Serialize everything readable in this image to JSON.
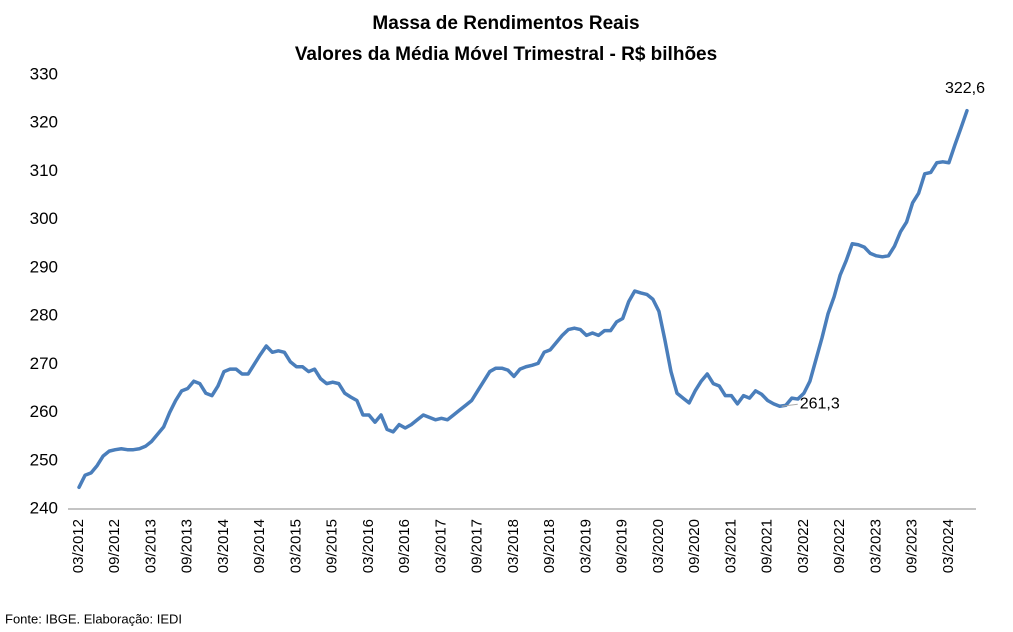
{
  "chart_data": {
    "type": "line",
    "title": "Massa de Rendimentos Reais",
    "subtitle": "Valores da Média Móvel Trimestral - R$ bilhões",
    "source": "Fonte: IBGE. Elaboração: IEDI",
    "color": "#4a7ebb",
    "grid": false,
    "ylim": [
      240,
      330
    ],
    "yticks": [
      240,
      250,
      260,
      270,
      280,
      290,
      300,
      310,
      320,
      330
    ],
    "categories": [
      "03/2012",
      null,
      null,
      null,
      null,
      null,
      "09/2012",
      null,
      null,
      null,
      null,
      null,
      "03/2013",
      null,
      null,
      null,
      null,
      null,
      "09/2013",
      null,
      null,
      null,
      null,
      null,
      "03/2014",
      null,
      null,
      null,
      null,
      null,
      "09/2014",
      null,
      null,
      null,
      null,
      null,
      "03/2015",
      null,
      null,
      null,
      null,
      null,
      "09/2015",
      null,
      null,
      null,
      null,
      null,
      "03/2016",
      null,
      null,
      null,
      null,
      null,
      "09/2016",
      null,
      null,
      null,
      null,
      null,
      "03/2017",
      null,
      null,
      null,
      null,
      null,
      "09/2017",
      null,
      null,
      null,
      null,
      null,
      "03/2018",
      null,
      null,
      null,
      null,
      null,
      "09/2018",
      null,
      null,
      null,
      null,
      null,
      "03/2019",
      null,
      null,
      null,
      null,
      null,
      "09/2019",
      null,
      null,
      null,
      null,
      null,
      "03/2020",
      null,
      null,
      null,
      null,
      null,
      "09/2020",
      null,
      null,
      null,
      null,
      null,
      "03/2021",
      null,
      null,
      null,
      null,
      null,
      "09/2021",
      null,
      null,
      null,
      null,
      null,
      "03/2022",
      null,
      null,
      null,
      null,
      null,
      "09/2022",
      null,
      null,
      null,
      null,
      null,
      "03/2023",
      null,
      null,
      null,
      null,
      null,
      "09/2023",
      null,
      null,
      null,
      null,
      null,
      "03/2024",
      null,
      null,
      null
    ],
    "values": [
      244.5,
      247,
      247.5,
      249,
      251,
      252,
      252.3,
      252.5,
      252.3,
      252.3,
      252.5,
      253,
      254,
      255.5,
      257,
      260,
      262.5,
      264.5,
      265,
      266.5,
      266,
      264,
      263.5,
      265.5,
      268.5,
      269,
      269,
      268,
      268,
      270,
      272,
      273.8,
      272.5,
      272.8,
      272.5,
      270.5,
      269.5,
      269.5,
      268.5,
      269,
      267,
      266,
      266.3,
      266,
      264,
      263.2,
      262.5,
      259.5,
      259.5,
      258,
      259.5,
      256.5,
      256,
      257.5,
      256.8,
      257.5,
      258.5,
      259.5,
      259,
      258.5,
      258.8,
      258.5,
      259.5,
      260.5,
      261.5,
      262.5,
      264.5,
      266.5,
      268.5,
      269.2,
      269.2,
      268.8,
      267.5,
      269,
      269.5,
      269.8,
      270.2,
      272.5,
      273,
      274.5,
      276,
      277.2,
      277.5,
      277.2,
      276,
      276.5,
      276,
      277,
      277,
      278.8,
      279.5,
      283,
      285.2,
      284.8,
      284.5,
      283.5,
      281,
      275,
      268.5,
      264,
      263,
      262,
      264.5,
      266.5,
      268,
      266,
      265.5,
      263.5,
      263.5,
      261.8,
      263.5,
      263,
      264.5,
      263.8,
      262.5,
      261.8,
      261.3,
      261.5,
      263,
      262.8,
      264,
      266.5,
      271,
      275.5,
      280.5,
      284,
      288.5,
      291.5,
      295,
      294.8,
      294.3,
      293,
      292.5,
      292.3,
      292.5,
      294.5,
      297.5,
      299.5,
      303.5,
      305.5,
      309.5,
      309.8,
      311.8,
      312,
      311.8,
      315.5,
      319,
      322.6
    ],
    "value_labels": [
      null,
      null,
      null,
      null,
      null,
      null,
      null,
      null,
      null,
      null,
      null,
      null,
      null,
      null,
      null,
      null,
      null,
      null,
      null,
      null,
      null,
      null,
      null,
      null,
      null,
      null,
      null,
      null,
      null,
      null,
      null,
      null,
      null,
      null,
      null,
      null,
      null,
      null,
      null,
      null,
      null,
      null,
      null,
      null,
      null,
      null,
      null,
      null,
      null,
      null,
      null,
      null,
      null,
      null,
      null,
      null,
      null,
      null,
      null,
      null,
      null,
      null,
      null,
      null,
      null,
      null,
      null,
      null,
      null,
      null,
      null,
      null,
      null,
      null,
      null,
      null,
      null,
      null,
      null,
      null,
      null,
      null,
      null,
      null,
      null,
      null,
      null,
      null,
      null,
      null,
      null,
      null,
      null,
      null,
      null,
      null,
      null,
      null,
      null,
      null,
      null,
      null,
      null,
      null,
      null,
      null,
      null,
      null,
      null,
      null,
      null,
      null,
      null,
      null,
      null,
      null,
      "261,3",
      null,
      null,
      null,
      null,
      null,
      null,
      null,
      null,
      null,
      null,
      null,
      null,
      null,
      null,
      null,
      null,
      null,
      null,
      null,
      null,
      null,
      null,
      null,
      null,
      null,
      null,
      null,
      null,
      null,
      null,
      "322,6"
    ]
  }
}
